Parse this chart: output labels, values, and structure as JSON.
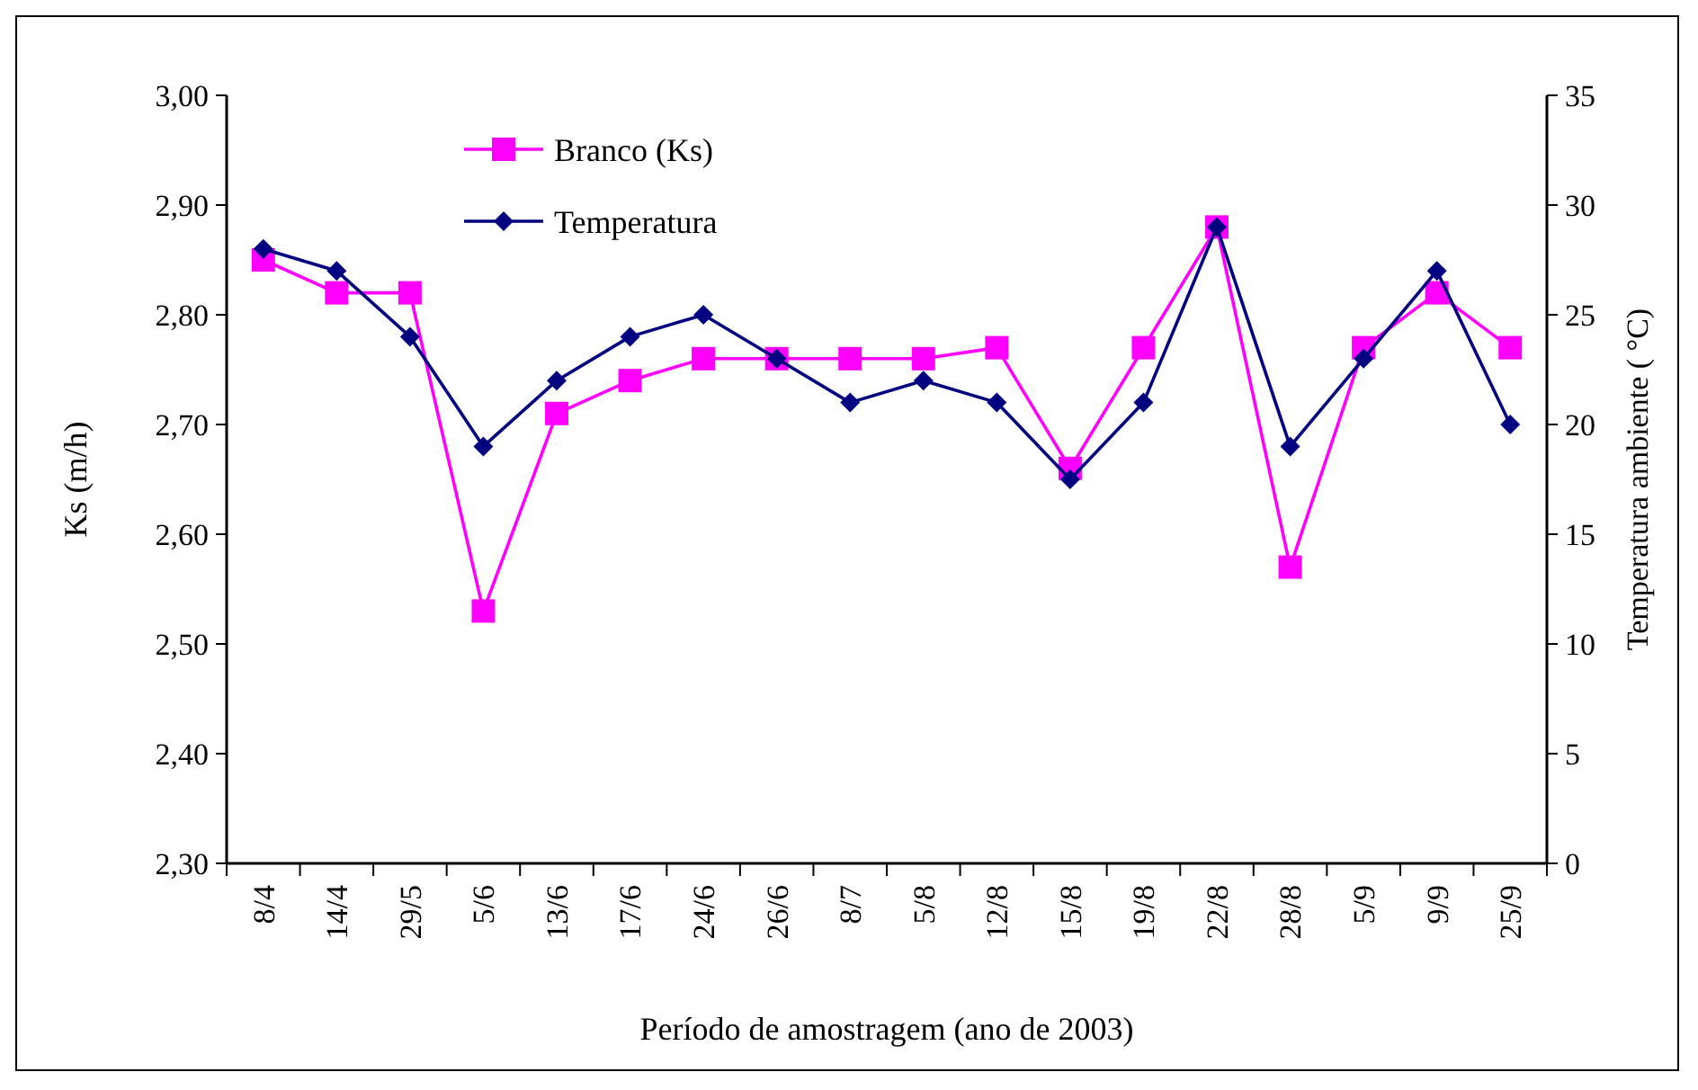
{
  "chart_data": {
    "type": "line",
    "xlabel": "Período de amostragem (ano de 2003)",
    "ylabel": "Ks (m/h)",
    "y2label": "Temperatura ambiente ( °C)",
    "categories": [
      "8/4",
      "14/4",
      "29/5",
      "5/6",
      "13/6",
      "17/6",
      "24/6",
      "26/6",
      "8/7",
      "5/8",
      "12/8",
      "15/8",
      "19/8",
      "22/8",
      "28/8",
      "5/9",
      "9/9",
      "25/9"
    ],
    "series": [
      {
        "name": "Branco (Ks)",
        "color": "#ff00ff",
        "marker": "square",
        "values": [
          2.85,
          2.82,
          2.82,
          2.53,
          2.71,
          2.74,
          2.76,
          2.76,
          2.76,
          2.76,
          2.77,
          2.66,
          2.77,
          2.88,
          2.57,
          2.77,
          2.82,
          2.77
        ]
      },
      {
        "name": "Temperatura",
        "color": "#000080",
        "marker": "diamond",
        "axis": "y2",
        "values": [
          28,
          27,
          24,
          19,
          22,
          24,
          25,
          23,
          21,
          22,
          21,
          17.5,
          21,
          29,
          19,
          23,
          27,
          20
        ]
      }
    ],
    "ylim": [
      2.3,
      3.0
    ],
    "yticks": [
      {
        "value": 2.3,
        "label": "2,30"
      },
      {
        "value": 2.4,
        "label": "2,40"
      },
      {
        "value": 2.5,
        "label": "2,50"
      },
      {
        "value": 2.6,
        "label": "2,60"
      },
      {
        "value": 2.7,
        "label": "2,70"
      },
      {
        "value": 2.8,
        "label": "2,80"
      },
      {
        "value": 2.9,
        "label": "2,90"
      },
      {
        "value": 3.0,
        "label": "3,00"
      }
    ],
    "y2lim": [
      0,
      35
    ],
    "y2ticks": [
      0,
      5,
      10,
      15,
      20,
      25,
      30,
      35
    ],
    "legend": "top left",
    "grid": false,
    "line_style": "solid"
  }
}
